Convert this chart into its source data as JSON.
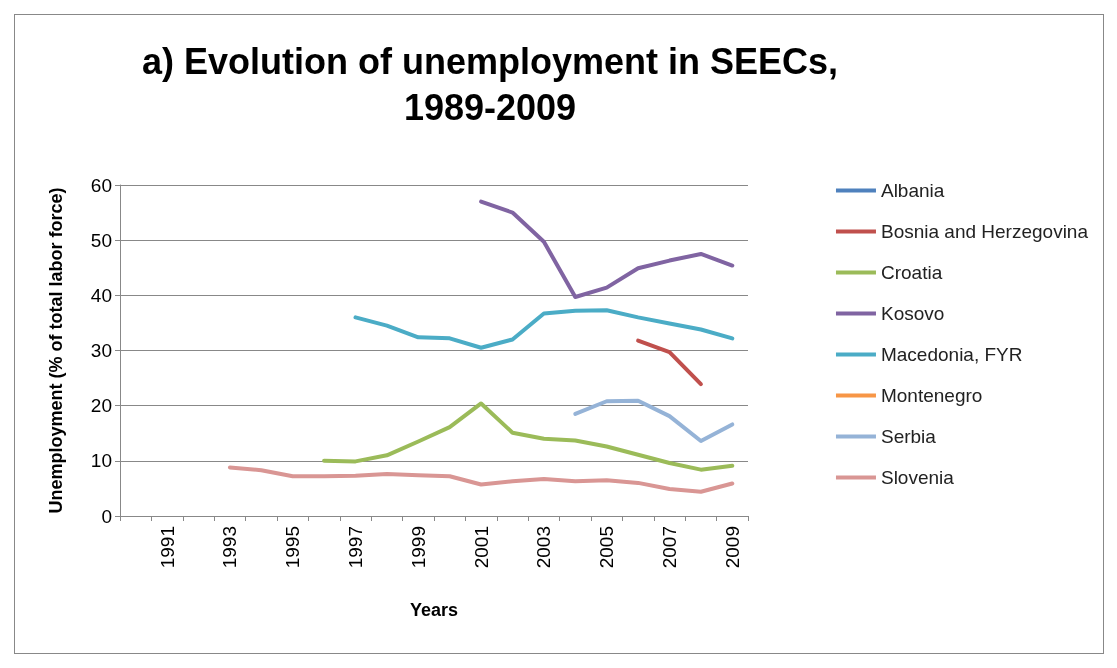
{
  "chart_data": {
    "type": "line",
    "title": "a) Evolution of unemployment in SEECs,\n1989-2009",
    "xlabel": "Years",
    "ylabel": "Unemployment (% of total labor force)",
    "categories": [
      null,
      "1991",
      null,
      "1993",
      null,
      "1995",
      null,
      "1997",
      null,
      "1999",
      null,
      "2001",
      null,
      "2003",
      null,
      "2005",
      null,
      "2007",
      null,
      "2009"
    ],
    "series": [
      {
        "name": "Albania",
        "color": "#4f81bd",
        "values": [
          null,
          null,
          null,
          null,
          null,
          null,
          null,
          null,
          null,
          null,
          null,
          null,
          null,
          null,
          null,
          null,
          null,
          null,
          null,
          null
        ]
      },
      {
        "name": "Bosnia and Herzegovina",
        "color": "#c0504d",
        "values": [
          null,
          null,
          null,
          null,
          null,
          null,
          null,
          null,
          null,
          null,
          null,
          null,
          null,
          null,
          null,
          null,
          31.8,
          29.7,
          23.9,
          null
        ]
      },
      {
        "name": "Croatia",
        "color": "#9bbb59",
        "values": [
          null,
          null,
          null,
          null,
          null,
          null,
          10.0,
          9.9,
          11.0,
          13.5,
          16.1,
          20.4,
          15.1,
          14.0,
          13.7,
          12.6,
          11.1,
          9.6,
          8.4,
          9.1
        ]
      },
      {
        "name": "Kosovo",
        "color": "#8064a2",
        "values": [
          null,
          null,
          null,
          null,
          null,
          null,
          null,
          null,
          null,
          null,
          null,
          57.0,
          55.0,
          49.7,
          39.7,
          41.4,
          44.9,
          46.3,
          47.5,
          45.4
        ]
      },
      {
        "name": "Macedonia, FYR",
        "color": "#4bacc6",
        "values": [
          null,
          null,
          null,
          null,
          null,
          null,
          null,
          36.0,
          34.5,
          32.4,
          32.2,
          30.5,
          32.0,
          36.7,
          37.2,
          37.3,
          36.0,
          34.9,
          33.8,
          32.2
        ]
      },
      {
        "name": "Montenegro",
        "color": "#f79646",
        "values": [
          null,
          null,
          null,
          null,
          null,
          null,
          null,
          null,
          null,
          null,
          null,
          null,
          null,
          null,
          null,
          null,
          null,
          null,
          null,
          null
        ]
      },
      {
        "name": "Serbia",
        "color": "#95b3d7",
        "values": [
          null,
          null,
          null,
          null,
          null,
          null,
          null,
          null,
          null,
          null,
          null,
          null,
          null,
          null,
          18.5,
          20.8,
          20.9,
          18.1,
          13.6,
          16.6
        ]
      },
      {
        "name": "Slovenia",
        "color": "#d99694",
        "values": [
          null,
          null,
          null,
          8.8,
          8.3,
          7.2,
          7.2,
          7.3,
          7.6,
          7.4,
          7.2,
          5.7,
          6.3,
          6.7,
          6.3,
          6.5,
          6.0,
          4.9,
          4.4,
          5.9
        ]
      }
    ],
    "ylim": [
      0,
      60
    ],
    "yticks": [
      0,
      10,
      20,
      30,
      40,
      50,
      60
    ],
    "grid": "y",
    "legend": "right",
    "marker": "none",
    "line_style": "solid"
  }
}
